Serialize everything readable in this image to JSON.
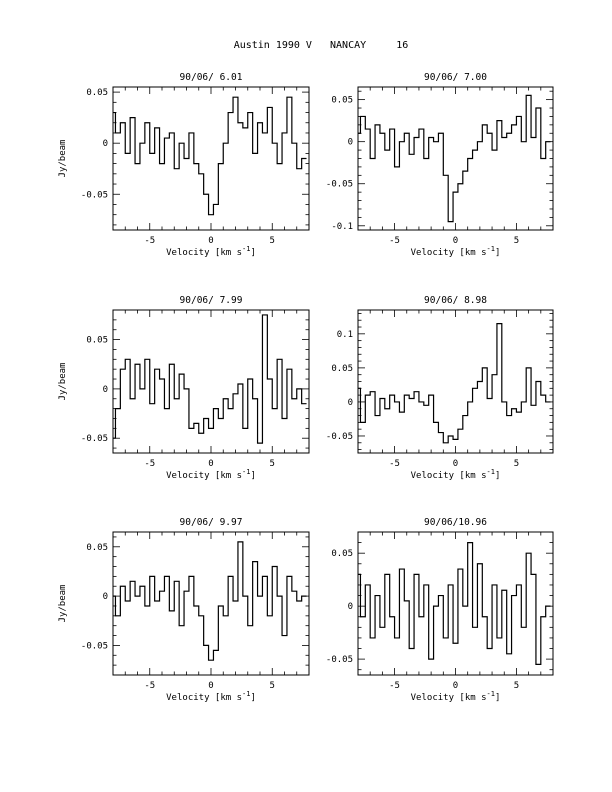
{
  "page_title": "Austin 1990 V   NANCAY     16",
  "chart_data": [
    {
      "type": "line",
      "title": "90/06/ 6.01",
      "xlabel": "Velocity [km s",
      "xlabel_sup": "-1",
      "xlabel_end": "]",
      "ylabel": "Jy/beam",
      "xlim": [
        -8,
        8
      ],
      "ylim": [
        -0.085,
        0.055
      ],
      "xticks": [
        -5,
        0,
        5
      ],
      "yticks": [
        0.05,
        0,
        -0.05
      ],
      "ytick_labels": [
        "0.05",
        "0",
        "-0.05"
      ],
      "series": [
        {
          "x": [
            -8.0,
            -7.6,
            -7.2,
            -6.8,
            -6.4,
            -6.0,
            -5.6,
            -5.2,
            -4.8,
            -4.4,
            -4.0,
            -3.6,
            -3.2,
            -2.8,
            -2.4,
            -2.0,
            -1.6,
            -1.2,
            -0.8,
            -0.4,
            0.0,
            0.4,
            0.8,
            1.2,
            1.6,
            2.0,
            2.4,
            2.8,
            3.2,
            3.6,
            4.0,
            4.4,
            4.8,
            5.2,
            5.6,
            6.0,
            6.4,
            6.8,
            7.2,
            7.6
          ],
          "y": [
            0.03,
            0.01,
            0.02,
            -0.01,
            0.025,
            -0.02,
            0.0,
            0.02,
            -0.01,
            0.015,
            -0.02,
            0.005,
            0.01,
            -0.025,
            0.0,
            -0.015,
            0.01,
            -0.02,
            -0.03,
            -0.05,
            -0.07,
            -0.06,
            -0.02,
            0.0,
            0.03,
            0.045,
            0.02,
            0.015,
            0.03,
            -0.01,
            0.02,
            0.01,
            0.035,
            0.0,
            -0.02,
            0.01,
            0.045,
            0.0,
            -0.025,
            -0.015
          ]
        }
      ]
    },
    {
      "type": "line",
      "title": "90/06/ 7.00",
      "xlabel": "Velocity [km s",
      "xlabel_sup": "-1",
      "xlabel_end": "]",
      "ylabel": "",
      "xlim": [
        -8,
        8
      ],
      "ylim": [
        -0.105,
        0.065
      ],
      "xticks": [
        -5,
        0,
        5
      ],
      "yticks": [
        0.05,
        0,
        -0.05,
        -0.1
      ],
      "ytick_labels": [
        "0.05",
        "0",
        "-0.05",
        "-0.1"
      ],
      "series": [
        {
          "x": [
            -8.0,
            -7.6,
            -7.2,
            -6.8,
            -6.4,
            -6.0,
            -5.6,
            -5.2,
            -4.8,
            -4.4,
            -4.0,
            -3.6,
            -3.2,
            -2.8,
            -2.4,
            -2.0,
            -1.6,
            -1.2,
            -0.8,
            -0.4,
            0.0,
            0.4,
            0.8,
            1.2,
            1.6,
            2.0,
            2.4,
            2.8,
            3.2,
            3.6,
            4.0,
            4.4,
            4.8,
            5.2,
            5.6,
            6.0,
            6.4,
            6.8,
            7.2,
            7.6
          ],
          "y": [
            0.01,
            0.03,
            0.015,
            -0.02,
            0.02,
            0.01,
            -0.01,
            0.015,
            -0.03,
            0.0,
            0.01,
            -0.015,
            0.005,
            0.015,
            -0.02,
            0.005,
            0.0,
            0.01,
            -0.04,
            -0.095,
            -0.06,
            -0.05,
            -0.035,
            -0.02,
            -0.01,
            0.0,
            0.02,
            0.01,
            -0.01,
            0.025,
            0.005,
            0.01,
            0.02,
            0.03,
            0.0,
            0.055,
            0.005,
            0.04,
            -0.02,
            0.0
          ]
        }
      ]
    },
    {
      "type": "line",
      "title": "90/06/ 7.99",
      "xlabel": "Velocity [km s",
      "xlabel_sup": "-1",
      "xlabel_end": "]",
      "ylabel": "Jy/beam",
      "xlim": [
        -8,
        8
      ],
      "ylim": [
        -0.065,
        0.08
      ],
      "xticks": [
        -5,
        0,
        5
      ],
      "yticks": [
        0.05,
        0,
        -0.05
      ],
      "ytick_labels": [
        "0.05",
        "0",
        "-0.05"
      ],
      "series": [
        {
          "x": [
            -8.0,
            -7.6,
            -7.2,
            -6.8,
            -6.4,
            -6.0,
            -5.6,
            -5.2,
            -4.8,
            -4.4,
            -4.0,
            -3.6,
            -3.2,
            -2.8,
            -2.4,
            -2.0,
            -1.6,
            -1.2,
            -0.8,
            -0.4,
            0.0,
            0.4,
            0.8,
            1.2,
            1.6,
            2.0,
            2.4,
            2.8,
            3.2,
            3.6,
            4.0,
            4.4,
            4.8,
            5.2,
            5.6,
            6.0,
            6.4,
            6.8,
            7.2,
            7.6
          ],
          "y": [
            -0.05,
            -0.02,
            0.02,
            0.03,
            -0.01,
            0.025,
            0.0,
            0.03,
            -0.015,
            0.02,
            0.01,
            -0.02,
            0.025,
            -0.01,
            0.015,
            0.0,
            -0.04,
            -0.035,
            -0.045,
            -0.03,
            -0.04,
            -0.02,
            -0.03,
            -0.01,
            -0.02,
            -0.005,
            0.005,
            -0.04,
            0.01,
            -0.01,
            -0.055,
            0.075,
            0.01,
            -0.02,
            0.03,
            -0.03,
            0.02,
            -0.01,
            0.0,
            -0.015
          ]
        }
      ]
    },
    {
      "type": "line",
      "title": "90/06/ 8.98",
      "xlabel": "Velocity [km s",
      "xlabel_sup": "-1",
      "xlabel_end": "]",
      "ylabel": "",
      "xlim": [
        -8,
        8
      ],
      "ylim": [
        -0.075,
        0.135
      ],
      "xticks": [
        -5,
        0,
        5
      ],
      "yticks": [
        0.1,
        0.05,
        0,
        -0.05
      ],
      "ytick_labels": [
        "0.1",
        "0.05",
        "0",
        "-0.05"
      ],
      "series": [
        {
          "x": [
            -8.0,
            -7.6,
            -7.2,
            -6.8,
            -6.4,
            -6.0,
            -5.6,
            -5.2,
            -4.8,
            -4.4,
            -4.0,
            -3.6,
            -3.2,
            -2.8,
            -2.4,
            -2.0,
            -1.6,
            -1.2,
            -0.8,
            -0.4,
            0.0,
            0.4,
            0.8,
            1.2,
            1.6,
            2.0,
            2.4,
            2.8,
            3.2,
            3.6,
            4.0,
            4.4,
            4.8,
            5.2,
            5.6,
            6.0,
            6.4,
            6.8,
            7.2,
            7.6
          ],
          "y": [
            0.02,
            -0.03,
            0.01,
            0.015,
            -0.02,
            0.005,
            -0.01,
            0.01,
            0.0,
            -0.015,
            0.01,
            0.005,
            0.015,
            0.0,
            -0.005,
            0.01,
            -0.03,
            -0.045,
            -0.06,
            -0.05,
            -0.055,
            -0.04,
            -0.02,
            0.0,
            0.02,
            0.03,
            0.05,
            0.005,
            0.04,
            0.115,
            0.0,
            -0.02,
            -0.01,
            -0.015,
            0.0,
            0.05,
            -0.005,
            0.03,
            0.01,
            0.0
          ]
        }
      ]
    },
    {
      "type": "line",
      "title": "90/06/ 9.97",
      "xlabel": "Velocity [km s",
      "xlabel_sup": "-1",
      "xlabel_end": "]",
      "ylabel": "Jy/beam",
      "xlim": [
        -8,
        8
      ],
      "ylim": [
        -0.08,
        0.065
      ],
      "xticks": [
        -5,
        0,
        5
      ],
      "yticks": [
        0.05,
        0,
        -0.05
      ],
      "ytick_labels": [
        "0.05",
        "0",
        "-0.05"
      ],
      "series": [
        {
          "x": [
            -8.0,
            -7.6,
            -7.2,
            -6.8,
            -6.4,
            -6.0,
            -5.6,
            -5.2,
            -4.8,
            -4.4,
            -4.0,
            -3.6,
            -3.2,
            -2.8,
            -2.4,
            -2.0,
            -1.6,
            -1.2,
            -0.8,
            -0.4,
            0.0,
            0.4,
            0.8,
            1.2,
            1.6,
            2.0,
            2.4,
            2.8,
            3.2,
            3.6,
            4.0,
            4.4,
            4.8,
            5.2,
            5.6,
            6.0,
            6.4,
            6.8,
            7.2,
            7.6
          ],
          "y": [
            0.0,
            -0.02,
            0.01,
            -0.005,
            0.015,
            0.0,
            0.01,
            -0.01,
            0.02,
            -0.005,
            0.005,
            0.02,
            -0.015,
            0.015,
            -0.03,
            0.005,
            0.02,
            -0.01,
            -0.02,
            -0.05,
            -0.065,
            -0.055,
            -0.01,
            -0.02,
            0.02,
            -0.005,
            0.055,
            0.0,
            -0.03,
            0.035,
            0.0,
            0.02,
            -0.02,
            0.03,
            0.0,
            -0.04,
            0.02,
            0.005,
            -0.005,
            0.0
          ]
        }
      ]
    },
    {
      "type": "line",
      "title": "90/06/10.96",
      "xlabel": "Velocity [km s",
      "xlabel_sup": "-1",
      "xlabel_end": "]",
      "ylabel": "",
      "xlim": [
        -8,
        8
      ],
      "ylim": [
        -0.065,
        0.07
      ],
      "xticks": [
        -5,
        0,
        5
      ],
      "yticks": [
        0.05,
        0,
        -0.05
      ],
      "ytick_labels": [
        "0.05",
        "0",
        "-0.05"
      ],
      "series": [
        {
          "x": [
            -8.0,
            -7.6,
            -7.2,
            -6.8,
            -6.4,
            -6.0,
            -5.6,
            -5.2,
            -4.8,
            -4.4,
            -4.0,
            -3.6,
            -3.2,
            -2.8,
            -2.4,
            -2.0,
            -1.6,
            -1.2,
            -0.8,
            -0.4,
            0.0,
            0.4,
            0.8,
            1.2,
            1.6,
            2.0,
            2.4,
            2.8,
            3.2,
            3.6,
            4.0,
            4.4,
            4.8,
            5.2,
            5.6,
            6.0,
            6.4,
            6.8,
            7.2,
            7.6
          ],
          "y": [
            0.03,
            -0.01,
            0.02,
            -0.03,
            0.01,
            -0.02,
            0.03,
            -0.01,
            -0.03,
            0.035,
            0.005,
            -0.04,
            0.03,
            -0.01,
            0.02,
            -0.05,
            0.0,
            0.01,
            -0.03,
            0.02,
            -0.035,
            0.035,
            0.0,
            0.06,
            -0.02,
            0.04,
            -0.01,
            -0.04,
            0.02,
            -0.03,
            0.015,
            -0.045,
            0.01,
            0.02,
            -0.02,
            0.05,
            0.03,
            -0.055,
            -0.01,
            0.0
          ]
        }
      ]
    }
  ]
}
